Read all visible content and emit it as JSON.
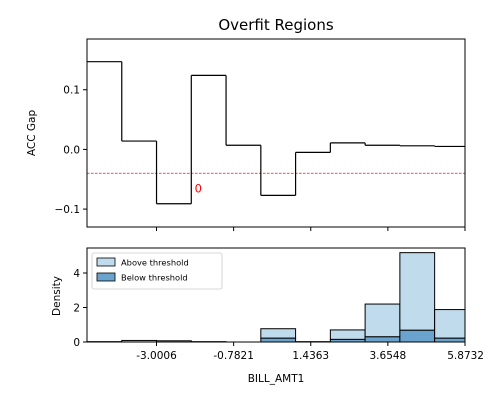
{
  "chart_data": [
    {
      "type": "line",
      "subtype": "step",
      "title": "Overfit Regions",
      "xlabel": "",
      "ylabel": "ACC Gap",
      "xlim": [
        -5.0,
        5.8732
      ],
      "ylim": [
        -0.13,
        0.185
      ],
      "yticks": [
        0.1,
        0.0,
        -0.1
      ],
      "ytick_labels": [
        "0.1",
        "0.0",
        "−0.1"
      ],
      "bin_edges": [
        -5.0,
        -4.0,
        -3.0,
        -2.0,
        -1.0,
        0.0,
        1.0,
        2.0,
        3.0,
        4.0,
        5.0,
        5.8732
      ],
      "values": [
        0.147,
        0.014,
        -0.091,
        0.124,
        0.007,
        -0.077,
        -0.005,
        0.011,
        0.007,
        0.006,
        0.005
      ],
      "threshold": -0.04,
      "threshold_color": "#ff0000",
      "annotation": {
        "text": "0",
        "x": -1.8,
        "y": -0.072,
        "color": "#ff0000"
      },
      "line_color": "#000000",
      "grid": false
    },
    {
      "type": "bar",
      "subtype": "stacked histogram",
      "xlabel": "BILL_AMT1",
      "ylabel": "Density",
      "xlim": [
        -5.0,
        5.8732
      ],
      "ylim": [
        0,
        5.45
      ],
      "yticks": [
        0,
        2,
        4
      ],
      "ytick_labels": [
        "0",
        "2",
        "4"
      ],
      "xticks": [
        -3.0006,
        -0.7821,
        1.4363,
        3.6548,
        5.8732
      ],
      "xtick_labels": [
        "-3.0006",
        "-0.7821",
        "1.4363",
        "3.6548",
        "5.8732"
      ],
      "bin_edges": [
        -5.0,
        -4.0,
        -3.0,
        -2.0,
        -1.0,
        0.0,
        1.0,
        2.0,
        3.0,
        4.0,
        5.0,
        5.8732
      ],
      "series": [
        {
          "name": "Below threshold",
          "color": "#6ba3cf",
          "values": [
            0.0,
            0.0,
            0.0,
            0.0,
            0.0,
            0.22,
            0.0,
            0.15,
            0.3,
            0.68,
            0.22
          ]
        },
        {
          "name": "Above threshold",
          "color": "#c0dbec",
          "values": [
            0.02,
            0.09,
            0.07,
            0.02,
            0.0,
            0.55,
            0.02,
            0.55,
            1.9,
            4.5,
            1.66
          ]
        }
      ],
      "stacked": true,
      "legend_position": "upper-left",
      "grid": false
    }
  ]
}
